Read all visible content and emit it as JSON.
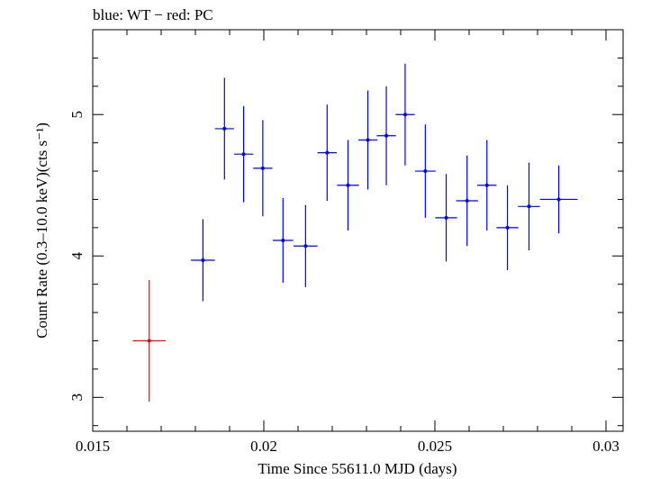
{
  "chart_data": {
    "type": "scatter",
    "title": "blue: WT − red: PC",
    "xlabel": "Time Since 55611.0 MJD (days)",
    "ylabel": "Count Rate (0.3–10.0 keV)(cts s⁻¹)",
    "xlim": [
      0.015,
      0.0305
    ],
    "ylim": [
      2.76,
      5.6
    ],
    "x_ticks": [
      0.015,
      0.02,
      0.025,
      0.03
    ],
    "x_tick_labels": [
      "0.015",
      "0.02",
      "0.025",
      "0.03"
    ],
    "y_ticks": [
      3,
      4,
      5
    ],
    "y_tick_labels": [
      "3",
      "4",
      "5"
    ],
    "grid": false,
    "series": [
      {
        "name": "WT",
        "color": "#0000ff",
        "points": [
          {
            "x": 0.01822,
            "xerr": 0.00035,
            "y": 3.97,
            "yerr": 0.29
          },
          {
            "x": 0.01885,
            "xerr": 0.00028,
            "y": 4.9,
            "yerr": 0.36
          },
          {
            "x": 0.01941,
            "xerr": 0.00028,
            "y": 4.72,
            "yerr": 0.34
          },
          {
            "x": 0.01997,
            "xerr": 0.00028,
            "y": 4.62,
            "yerr": 0.34
          },
          {
            "x": 0.02056,
            "xerr": 0.0003,
            "y": 4.11,
            "yerr": 0.3
          },
          {
            "x": 0.02122,
            "xerr": 0.00035,
            "y": 4.07,
            "yerr": 0.29
          },
          {
            "x": 0.02185,
            "xerr": 0.00028,
            "y": 4.73,
            "yerr": 0.34
          },
          {
            "x": 0.02246,
            "xerr": 0.00032,
            "y": 4.5,
            "yerr": 0.32
          },
          {
            "x": 0.02304,
            "xerr": 0.00028,
            "y": 4.82,
            "yerr": 0.35
          },
          {
            "x": 0.02358,
            "xerr": 0.00028,
            "y": 4.85,
            "yerr": 0.35
          },
          {
            "x": 0.02413,
            "xerr": 0.00028,
            "y": 5.0,
            "yerr": 0.36
          },
          {
            "x": 0.02472,
            "xerr": 0.0003,
            "y": 4.6,
            "yerr": 0.33
          },
          {
            "x": 0.02533,
            "xerr": 0.00032,
            "y": 4.27,
            "yerr": 0.31
          },
          {
            "x": 0.02594,
            "xerr": 0.00032,
            "y": 4.39,
            "yerr": 0.32
          },
          {
            "x": 0.02652,
            "xerr": 0.00028,
            "y": 4.5,
            "yerr": 0.32
          },
          {
            "x": 0.02712,
            "xerr": 0.00032,
            "y": 4.2,
            "yerr": 0.3
          },
          {
            "x": 0.02775,
            "xerr": 0.00032,
            "y": 4.35,
            "yerr": 0.31
          },
          {
            "x": 0.02862,
            "xerr": 0.00055,
            "y": 4.4,
            "yerr": 0.24
          }
        ]
      },
      {
        "name": "PC",
        "color": "#ff0000",
        "points": [
          {
            "x": 0.01665,
            "xerr": 0.00048,
            "y": 3.4,
            "yerr": 0.43
          }
        ]
      }
    ]
  }
}
